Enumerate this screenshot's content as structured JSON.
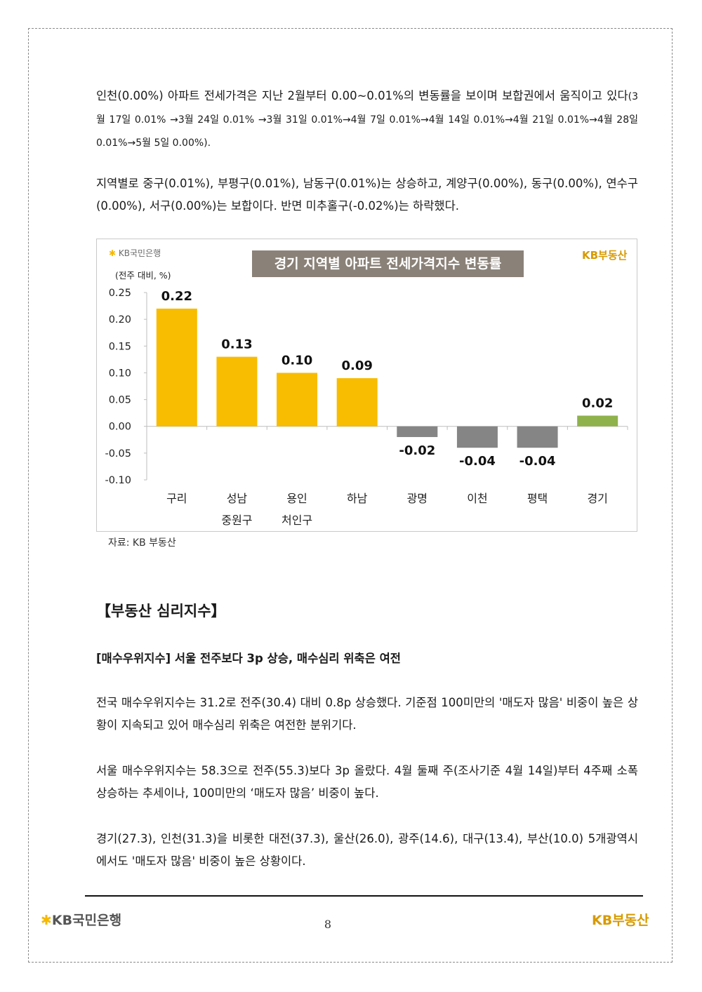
{
  "paragraphs": {
    "p1_main": "인천(0.00%) 아파트 전세가격은 지난 2월부터 0.00~0.01%의 변동률을 보이며 보합권에서 움직이고 있다",
    "p1_small": "(3월 17일 0.01% →3월 24일 0.01% →3월 31일 0.01%→4월 7일 0.01%→4월 14일 0.01%→4월 21일 0.01%→4월 28일 0.01%→5월 5일 0.00%).",
    "p2": "지역별로 중구(0.01%), 부평구(0.01%), 남동구(0.01%)는 상승하고, 계양구(0.00%), 동구(0.00%), 연수구(0.00%), 서구(0.00%)는 보합이다. 반면 미추홀구(-0.02%)는 하락했다.",
    "p3": "전국 매수우위지수는 31.2로 전주(30.4) 대비 0.8p 상승했다. 기준점 100미만의 '매도자 많음' 비중이 높은 상황이 지속되고 있어 매수심리 위축은 여전한 분위기다.",
    "p4": "서울 매수우위지수는 58.3으로 전주(55.3)보다 3p 올랐다. 4월 둘째 주(조사기준 4월 14일)부터 4주째 소폭 상승하는 추세이나, 100미만의 ‘매도자 많음’ 비중이 높다.",
    "p5": "경기(27.3), 인천(31.3)을 비롯한 대전(37.3), 울산(26.0), 광주(14.6), 대구(13.4), 부산(10.0) 5개광역시에서도 '매도자 많음' 비중이 높은 상황이다."
  },
  "chart_header": {
    "kb_bank_label": "KB국민은행",
    "brand_label": "KB부동산",
    "unit_label": "(전주 대비, %)",
    "source": "자료: KB 부동산"
  },
  "chart_data": {
    "type": "bar",
    "title": "경기 지역별 아파트 전세가격지수 변동률",
    "categories": [
      [
        "구리"
      ],
      [
        "성남",
        "중원구"
      ],
      [
        "용인",
        "처인구"
      ],
      [
        "하남"
      ],
      [
        "광명"
      ],
      [
        "이천"
      ],
      [
        "평택"
      ],
      [
        "경기"
      ]
    ],
    "values": [
      0.22,
      0.13,
      0.1,
      0.09,
      -0.02,
      -0.04,
      -0.04,
      0.02
    ],
    "data_labels": [
      "0.22",
      "0.13",
      "0.10",
      "0.09",
      "-0.02",
      "-0.04",
      "-0.04",
      "0.02"
    ],
    "ylim": [
      -0.1,
      0.25
    ],
    "yticks": [
      "0.25",
      "0.20",
      "0.15",
      "0.10",
      "0.05",
      "0.00",
      "-0.05",
      "-0.10"
    ],
    "ytick_values": [
      0.25,
      0.2,
      0.15,
      0.1,
      0.05,
      0.0,
      -0.05,
      -0.1
    ],
    "colors": {
      "positive_region": "#f8bc00",
      "negative": "#858585",
      "total": "#8fb24c"
    },
    "bar_color_keys": [
      "positive_region",
      "positive_region",
      "positive_region",
      "positive_region",
      "negative",
      "negative",
      "negative",
      "total"
    ],
    "grid": false,
    "legend": "none"
  },
  "section": {
    "title": "【부동산 심리지수】",
    "subhead": "[매수우위지수] 서울 전주보다 3p 상승, 매수심리 위축은 여전"
  },
  "footer": {
    "bank_logo": "KB국민은행",
    "page_number": "8",
    "brand": "KB부동산"
  }
}
